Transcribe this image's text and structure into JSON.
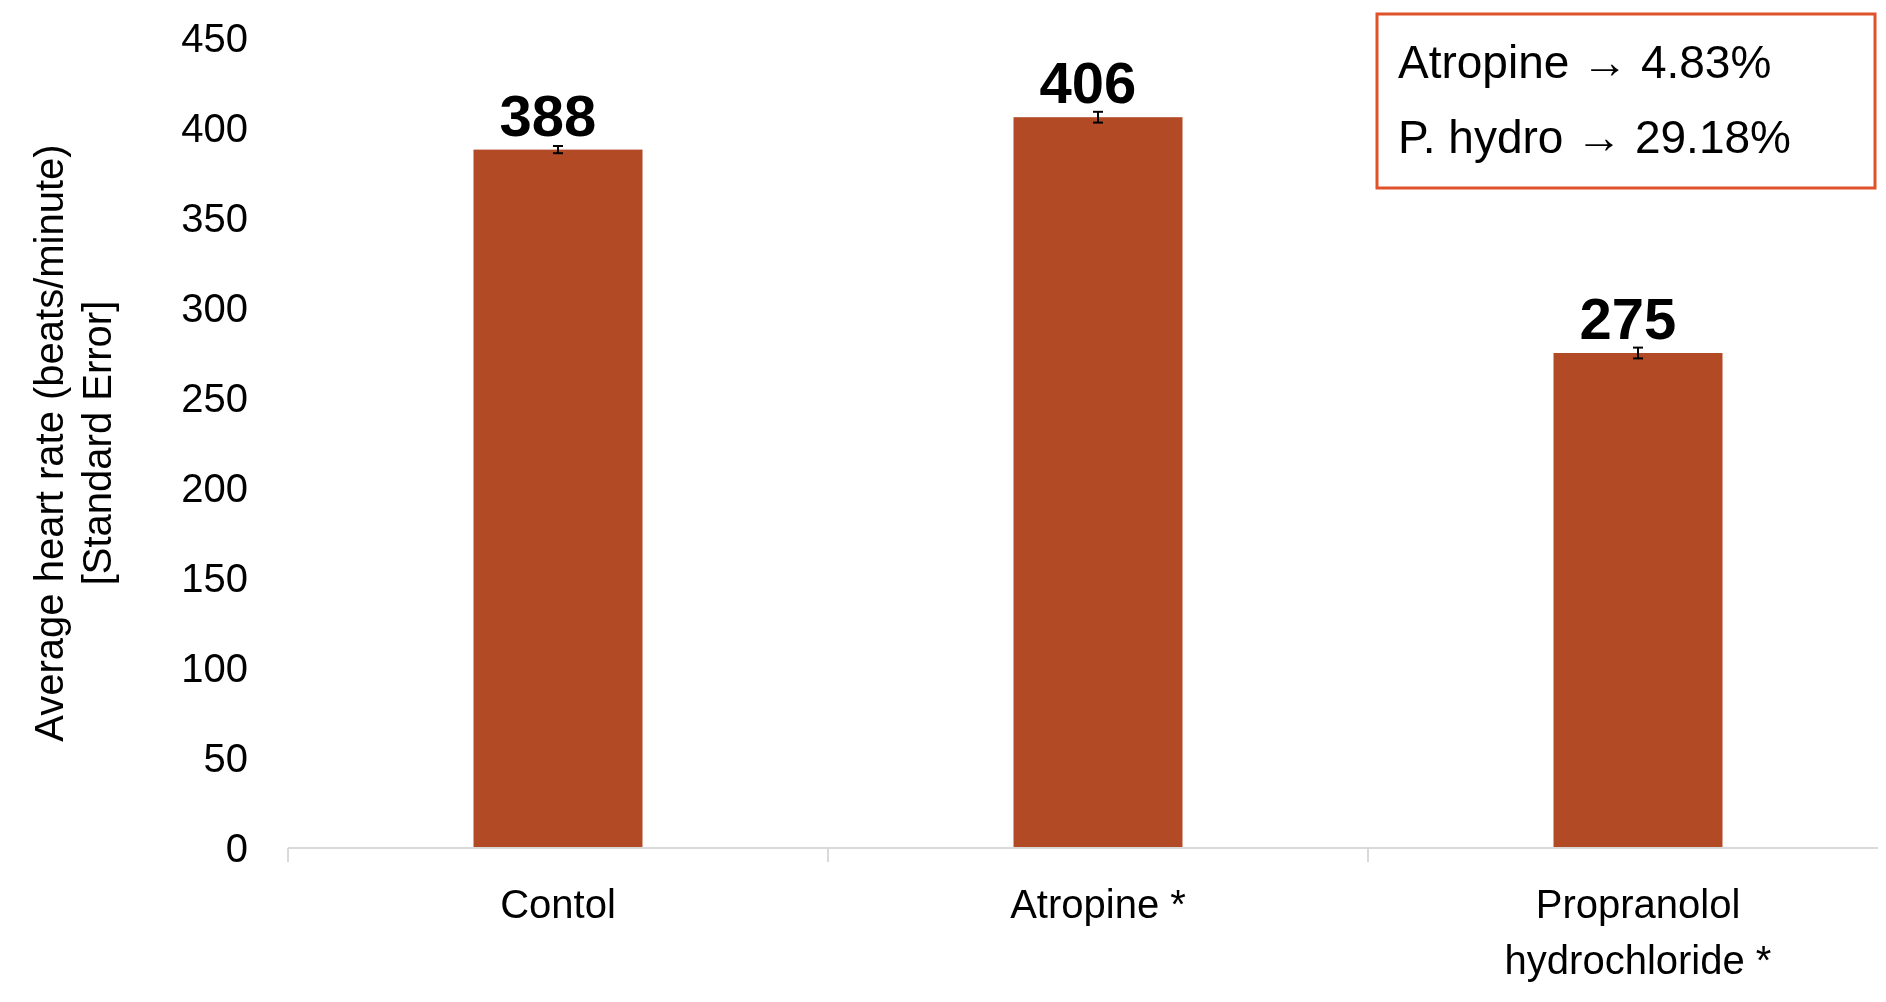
{
  "chart_data": {
    "type": "bar",
    "ylabel": "Average heart rate (beats/minute)\n[Standard Error]",
    "categories": [
      "Contol",
      "Atropine *",
      "Propranolol\nhydrochloride *"
    ],
    "values": [
      388,
      406,
      275
    ],
    "errors": [
      2,
      3,
      3
    ],
    "color": "#b34a26",
    "ylim": [
      0,
      450
    ],
    "yticks": [
      0,
      50,
      100,
      150,
      200,
      250,
      300,
      350,
      400,
      450
    ],
    "grid": false,
    "data_labels": true,
    "annotations": [
      "Atropine → 4.83%",
      "P. hydro → 29.18%"
    ]
  }
}
